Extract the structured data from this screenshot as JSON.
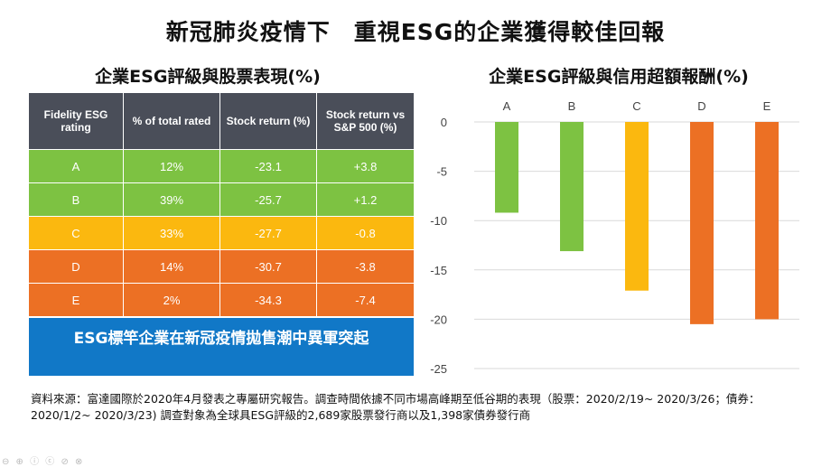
{
  "title": "新冠肺炎疫情下　重視ESG的企業獲得較佳回報",
  "left_title": "企業ESG評級與股票表現(%)",
  "right_title": "企業ESG評級與信用超額報酬(%)",
  "table": {
    "headers": [
      "Fidelity ESG rating",
      "% of total rated",
      "Stock return (%)",
      "Stock return vs S&P 500 (%)"
    ],
    "rows": [
      {
        "rating": "A",
        "pct": "12%",
        "ret": "-23.1",
        "vs": "+3.8",
        "color": "#7dc242"
      },
      {
        "rating": "B",
        "pct": "39%",
        "ret": "-25.7",
        "vs": "+1.2",
        "color": "#7dc242"
      },
      {
        "rating": "C",
        "pct": "33%",
        "ret": "-27.7",
        "vs": "-0.8",
        "color": "#fbb80f"
      },
      {
        "rating": "D",
        "pct": "14%",
        "ret": "-30.7",
        "vs": "-3.8",
        "color": "#ec7024"
      },
      {
        "rating": "E",
        "pct": "2%",
        "ret": "-34.3",
        "vs": "-7.4",
        "color": "#ec7024"
      }
    ]
  },
  "banner": "ESG標竿企業在新冠疫情拋售潮中異軍突起",
  "chart_data": {
    "type": "bar",
    "title": "企業ESG評級與信用超額報酬(%)",
    "categories": [
      "A",
      "B",
      "C",
      "D",
      "E"
    ],
    "values": [
      -9.2,
      -13.1,
      -17.1,
      -20.5,
      -20.0
    ],
    "colors": [
      "#7dc242",
      "#7dc242",
      "#fbb80f",
      "#ec7024",
      "#ec7024"
    ],
    "ylim": [
      -25,
      0
    ],
    "yticks": [
      0,
      -5,
      -10,
      -15,
      -20,
      -25
    ],
    "grid": true,
    "xlabel": "",
    "ylabel": ""
  },
  "source": "資料來源：富達國際於2020年4月發表之專屬研究報告。調查時間依據不同市場高峰期至低谷期的表現（股票：2020/2/19~ 2020/3/26；債券： 2020/1/2~ 2020/3/23) 調查對象為全球具ESG評級的2,689家股票發行商以及1,398家債券發行商"
}
